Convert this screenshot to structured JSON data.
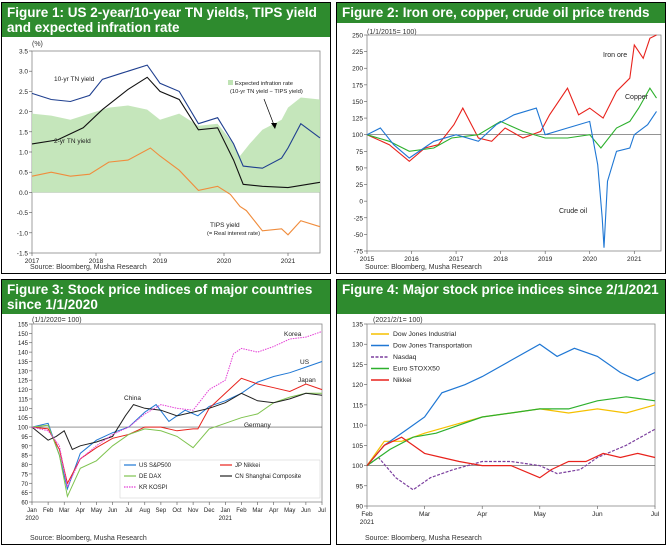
{
  "panels": [
    {
      "title": "Figure 1: US 2-year/10-year TN yields, TIPS yield and expected infration rate",
      "unit": "(%)",
      "source": "Source: Bloomberg, Musha Research",
      "annotations": {
        "ten_yr": "10-yr TN yield",
        "two_yr": "2-yr TN yield",
        "expected_1": "Expected infration rate",
        "expected_2": "(10-yr TN yield − TIPS yield)",
        "tips_1": "TIPS yield",
        "tips_2": "(= Real interest rate)"
      }
    },
    {
      "title": "Figure 2: Iron ore, copper, crude oil price trends",
      "unit": "(1/1/2015= 100)",
      "source": "Source: Bloomberg, Musha Research",
      "annotations": {
        "iron": "Iron ore",
        "copper": "Copper",
        "crude": "Crude oil"
      }
    },
    {
      "title": "Figure 3: Stock price indices of major countries since 1/1/2020",
      "unit": "(1/1/2020= 100)",
      "source": "Source: Bloomberg, Musha Research",
      "annotations": {
        "korea": "Korea",
        "us": "US",
        "japan": "Japan",
        "china": "China",
        "germany": "Germany"
      },
      "legend": [
        "US S&P500",
        "JP Nikkei",
        "DE DAX",
        "CN Shanghai Composite",
        "KR KOSPI"
      ]
    },
    {
      "title": "Figure 4: Major stock price indices since 2/1/2021",
      "unit": "(2021/2/1= 100)",
      "source": "Source: Bloomberg, Musha Research",
      "legend": [
        "Dow Jones Industrial",
        "Dow Jones Transportation",
        "Nasdaq",
        "Euro STOXX50",
        "Nikkei"
      ]
    }
  ],
  "chart_data": [
    {
      "type": "line",
      "ylim": [
        -1.5,
        3.5
      ],
      "yticks": [
        "3.5",
        "3.0",
        "2.5",
        "2.0",
        "1.5",
        "1.0",
        "0.5",
        "0.0",
        "-0.5",
        "-1.0",
        "-1.5"
      ],
      "xticks": [
        "2017",
        "2018",
        "2019",
        "2020",
        "2021"
      ],
      "series": [
        {
          "name": "10-yr TN yield",
          "color": "#1f3f8f",
          "x": [
            2017.0,
            2017.3,
            2017.6,
            2017.9,
            2018.1,
            2018.4,
            2018.8,
            2019.0,
            2019.3,
            2019.6,
            2019.9,
            2020.15,
            2020.3,
            2020.6,
            2020.9,
            2021.0,
            2021.2,
            2021.5
          ],
          "y": [
            2.45,
            2.3,
            2.25,
            2.4,
            2.8,
            2.95,
            3.15,
            2.7,
            2.5,
            1.7,
            1.85,
            1.2,
            0.65,
            0.6,
            0.85,
            1.1,
            1.7,
            1.35
          ]
        },
        {
          "name": "2-yr TN yield",
          "color": "#111111",
          "x": [
            2017.0,
            2017.4,
            2017.8,
            2018.1,
            2018.5,
            2018.8,
            2019.0,
            2019.3,
            2019.6,
            2019.9,
            2020.15,
            2020.3,
            2020.6,
            2021.0,
            2021.5
          ],
          "y": [
            1.2,
            1.3,
            1.6,
            2.05,
            2.55,
            2.85,
            2.5,
            2.3,
            1.55,
            1.6,
            0.8,
            0.2,
            0.15,
            0.12,
            0.25
          ]
        },
        {
          "name": "TIPS yield",
          "color": "#f08c3c",
          "x": [
            2017.0,
            2017.3,
            2017.6,
            2017.9,
            2018.2,
            2018.5,
            2018.85,
            2019.0,
            2019.3,
            2019.6,
            2019.9,
            2020.1,
            2020.25,
            2020.35,
            2020.6,
            2020.9,
            2021.0,
            2021.2,
            2021.5
          ],
          "y": [
            0.4,
            0.5,
            0.4,
            0.45,
            0.75,
            0.8,
            1.1,
            0.9,
            0.55,
            0.05,
            0.15,
            -0.05,
            -0.35,
            -0.45,
            -0.95,
            -0.9,
            -1.05,
            -0.7,
            -0.85
          ]
        },
        {
          "name": "Expected infration rate",
          "color": "#bfe3b4",
          "x": [
            2017.0,
            2017.3,
            2017.6,
            2017.9,
            2018.2,
            2018.5,
            2018.8,
            2019.0,
            2019.3,
            2019.6,
            2019.9,
            2020.15,
            2020.25,
            2020.4,
            2020.6,
            2020.9,
            2021.0,
            2021.2,
            2021.5
          ],
          "y": [
            1.95,
            1.9,
            1.8,
            1.95,
            2.1,
            2.15,
            2.05,
            1.8,
            1.95,
            1.65,
            1.7,
            1.2,
            0.9,
            1.2,
            1.55,
            1.8,
            2.1,
            2.35,
            2.3
          ]
        }
      ]
    },
    {
      "type": "line",
      "ylim": [
        -75,
        250
      ],
      "yticks": [
        "250",
        "225",
        "200",
        "175",
        "150",
        "125",
        "100",
        "75",
        "50",
        "25",
        "0",
        "-25",
        "-50",
        "-75"
      ],
      "xticks": [
        "2015",
        "2016",
        "2017",
        "2018",
        "2019",
        "2020",
        "2021"
      ],
      "series": [
        {
          "name": "Iron ore",
          "color": "#e8221c",
          "x": [
            2015.0,
            2015.5,
            2015.95,
            2016.3,
            2016.6,
            2016.95,
            2017.15,
            2017.5,
            2017.8,
            2018.1,
            2018.5,
            2018.9,
            2019.1,
            2019.5,
            2019.75,
            2020.0,
            2020.3,
            2020.6,
            2020.9,
            2021.0,
            2021.2,
            2021.35,
            2021.5
          ],
          "y": [
            100,
            85,
            60,
            80,
            85,
            115,
            140,
            95,
            90,
            110,
            95,
            105,
            130,
            170,
            130,
            140,
            125,
            165,
            185,
            235,
            215,
            245,
            250
          ]
        },
        {
          "name": "Copper",
          "color": "#2db02d",
          "x": [
            2015.0,
            2015.5,
            2015.95,
            2016.5,
            2016.9,
            2017.5,
            2018.0,
            2018.5,
            2019.0,
            2019.5,
            2020.0,
            2020.25,
            2020.6,
            2020.9,
            2021.1,
            2021.35,
            2021.5
          ],
          "y": [
            100,
            90,
            75,
            80,
            95,
            100,
            120,
            105,
            95,
            95,
            100,
            80,
            110,
            120,
            140,
            170,
            155
          ]
        },
        {
          "name": "Crude oil",
          "color": "#1f77d4",
          "x": [
            2015.0,
            2015.3,
            2015.6,
            2015.95,
            2016.5,
            2017.0,
            2017.5,
            2017.9,
            2018.3,
            2018.8,
            2019.0,
            2019.5,
            2020.0,
            2020.18,
            2020.28,
            2020.32,
            2020.4,
            2020.6,
            2020.9,
            2021.0,
            2021.3,
            2021.5
          ],
          "y": [
            100,
            110,
            85,
            65,
            90,
            100,
            90,
            115,
            130,
            140,
            100,
            110,
            120,
            55,
            -25,
            -70,
            30,
            75,
            80,
            100,
            115,
            135
          ]
        }
      ]
    },
    {
      "type": "line",
      "ylim": [
        60,
        155
      ],
      "yticks": [
        "155",
        "150",
        "145",
        "140",
        "135",
        "130",
        "125",
        "120",
        "115",
        "110",
        "105",
        "100",
        "95",
        "90",
        "85",
        "80",
        "75",
        "70",
        "65",
        "60"
      ],
      "xticks": [
        "Jan",
        "Feb",
        "Mar",
        "Apr",
        "May",
        "Jun",
        "Jul",
        "Aug",
        "Sep",
        "Oct",
        "Nov",
        "Dec",
        "Jan",
        "Feb",
        "Mar",
        "Apr",
        "May",
        "Jun",
        "Jul"
      ],
      "xlabel_years": [
        "2020",
        "2021"
      ],
      "series": [
        {
          "name": "US S&P500",
          "color": "#1f77d4",
          "x": [
            0,
            1,
            1.7,
            2.2,
            3,
            4,
            5,
            6,
            7,
            7.7,
            8.5,
            9.5,
            10.3,
            11,
            12,
            13,
            14,
            15,
            16,
            17,
            18
          ],
          "y": [
            100,
            102,
            85,
            67,
            86,
            93,
            97,
            100,
            108,
            112,
            103,
            109,
            106,
            111,
            114,
            118,
            124,
            127,
            129,
            132,
            135
          ]
        },
        {
          "name": "JP Nikkei",
          "color": "#e8221c",
          "x": [
            0,
            1,
            1.7,
            2.2,
            3,
            4,
            5,
            6,
            7,
            8,
            9,
            10,
            10.3,
            11,
            12,
            13,
            14,
            15,
            16,
            17,
            18
          ],
          "y": [
            100,
            99,
            88,
            70,
            83,
            89,
            94,
            96,
            100,
            100,
            98,
            99,
            99,
            110,
            118,
            126,
            123,
            121,
            119,
            123,
            120
          ]
        },
        {
          "name": "DE DAX",
          "color": "#7fc34f",
          "x": [
            0,
            1,
            1.7,
            2.2,
            3,
            4,
            5,
            6,
            7,
            8,
            9,
            10,
            11,
            12,
            13,
            14,
            15,
            16,
            17,
            18
          ],
          "y": [
            100,
            101,
            85,
            63,
            78,
            82,
            90,
            96,
            99,
            98,
            95,
            89,
            99,
            102,
            105,
            107,
            113,
            116,
            118,
            118
          ]
        },
        {
          "name": "CN Shanghai Composite",
          "color": "#222222",
          "x": [
            0,
            1,
            1.5,
            2,
            2.5,
            3,
            4,
            5,
            5.8,
            6.3,
            7,
            8,
            9,
            10,
            11,
            12,
            13,
            14,
            15,
            16,
            17,
            18
          ],
          "y": [
            100,
            93,
            95,
            98,
            88,
            90,
            92,
            95,
            106,
            112,
            110,
            109,
            106,
            108,
            110,
            113,
            118,
            114,
            113,
            115,
            118,
            117
          ]
        },
        {
          "name": "KR KOSPI",
          "color": "#e43fd6",
          "x": [
            0,
            1,
            1.7,
            2.2,
            3,
            4,
            5,
            6,
            7,
            8,
            9,
            10,
            11,
            12,
            12.5,
            13,
            14,
            15,
            16,
            17,
            18
          ],
          "y": [
            100,
            98,
            90,
            68,
            83,
            90,
            96,
            100,
            107,
            112,
            110,
            109,
            120,
            125,
            139,
            142,
            140,
            143,
            147,
            148,
            151
          ]
        }
      ]
    },
    {
      "type": "line",
      "ylim": [
        90,
        135
      ],
      "yticks": [
        "135",
        "130",
        "125",
        "120",
        "115",
        "110",
        "105",
        "100",
        "95",
        "90"
      ],
      "xticks": [
        "Feb",
        "Mar",
        "Apr",
        "May",
        "Jun",
        "Jul"
      ],
      "xlabel_year": "2021",
      "series": [
        {
          "name": "Dow Jones Industrial",
          "color": "#f5c000",
          "x": [
            0,
            0.3,
            0.6,
            1,
            1.5,
            2,
            2.5,
            3,
            3.5,
            4,
            4.5,
            5
          ],
          "y": [
            100,
            106,
            106,
            108,
            110,
            112,
            113,
            114,
            113,
            114,
            113,
            115
          ]
        },
        {
          "name": "Dow Jones Transportation",
          "color": "#1f77d4",
          "x": [
            0,
            0.3,
            0.7,
            1,
            1.3,
            1.7,
            2,
            2.5,
            3,
            3.3,
            3.6,
            4,
            4.4,
            4.7,
            5
          ],
          "y": [
            100,
            105,
            109,
            112,
            118,
            120,
            122,
            126,
            130,
            127,
            129,
            127,
            123,
            121,
            123
          ]
        },
        {
          "name": "Nasdaq",
          "color": "#7b3f9e",
          "x": [
            0,
            0.2,
            0.5,
            0.8,
            1.1,
            1.5,
            2,
            2.5,
            3,
            3.3,
            3.7,
            4,
            4.5,
            5
          ],
          "y": [
            100,
            102,
            97,
            94,
            97,
            99,
            101,
            101,
            100,
            98,
            99,
            102,
            105,
            109
          ]
        },
        {
          "name": "Euro STOXX50",
          "color": "#2db02d",
          "x": [
            0,
            0.4,
            0.8,
            1.2,
            1.6,
            2,
            2.5,
            3,
            3.5,
            4,
            4.5,
            5
          ],
          "y": [
            100,
            104,
            107,
            108,
            110,
            112,
            113,
            114,
            114,
            116,
            117,
            116
          ]
        },
        {
          "name": "Nikkei",
          "color": "#e8221c",
          "x": [
            0,
            0.3,
            0.6,
            0.8,
            1,
            1.3,
            1.6,
            2,
            2.5,
            3,
            3.2,
            3.5,
            3.8,
            4.1,
            4.4,
            4.7,
            5
          ],
          "y": [
            100,
            105,
            107,
            105,
            103,
            102,
            101,
            100,
            100,
            97,
            99,
            101,
            101,
            103,
            102,
            103,
            102
          ]
        }
      ]
    }
  ]
}
